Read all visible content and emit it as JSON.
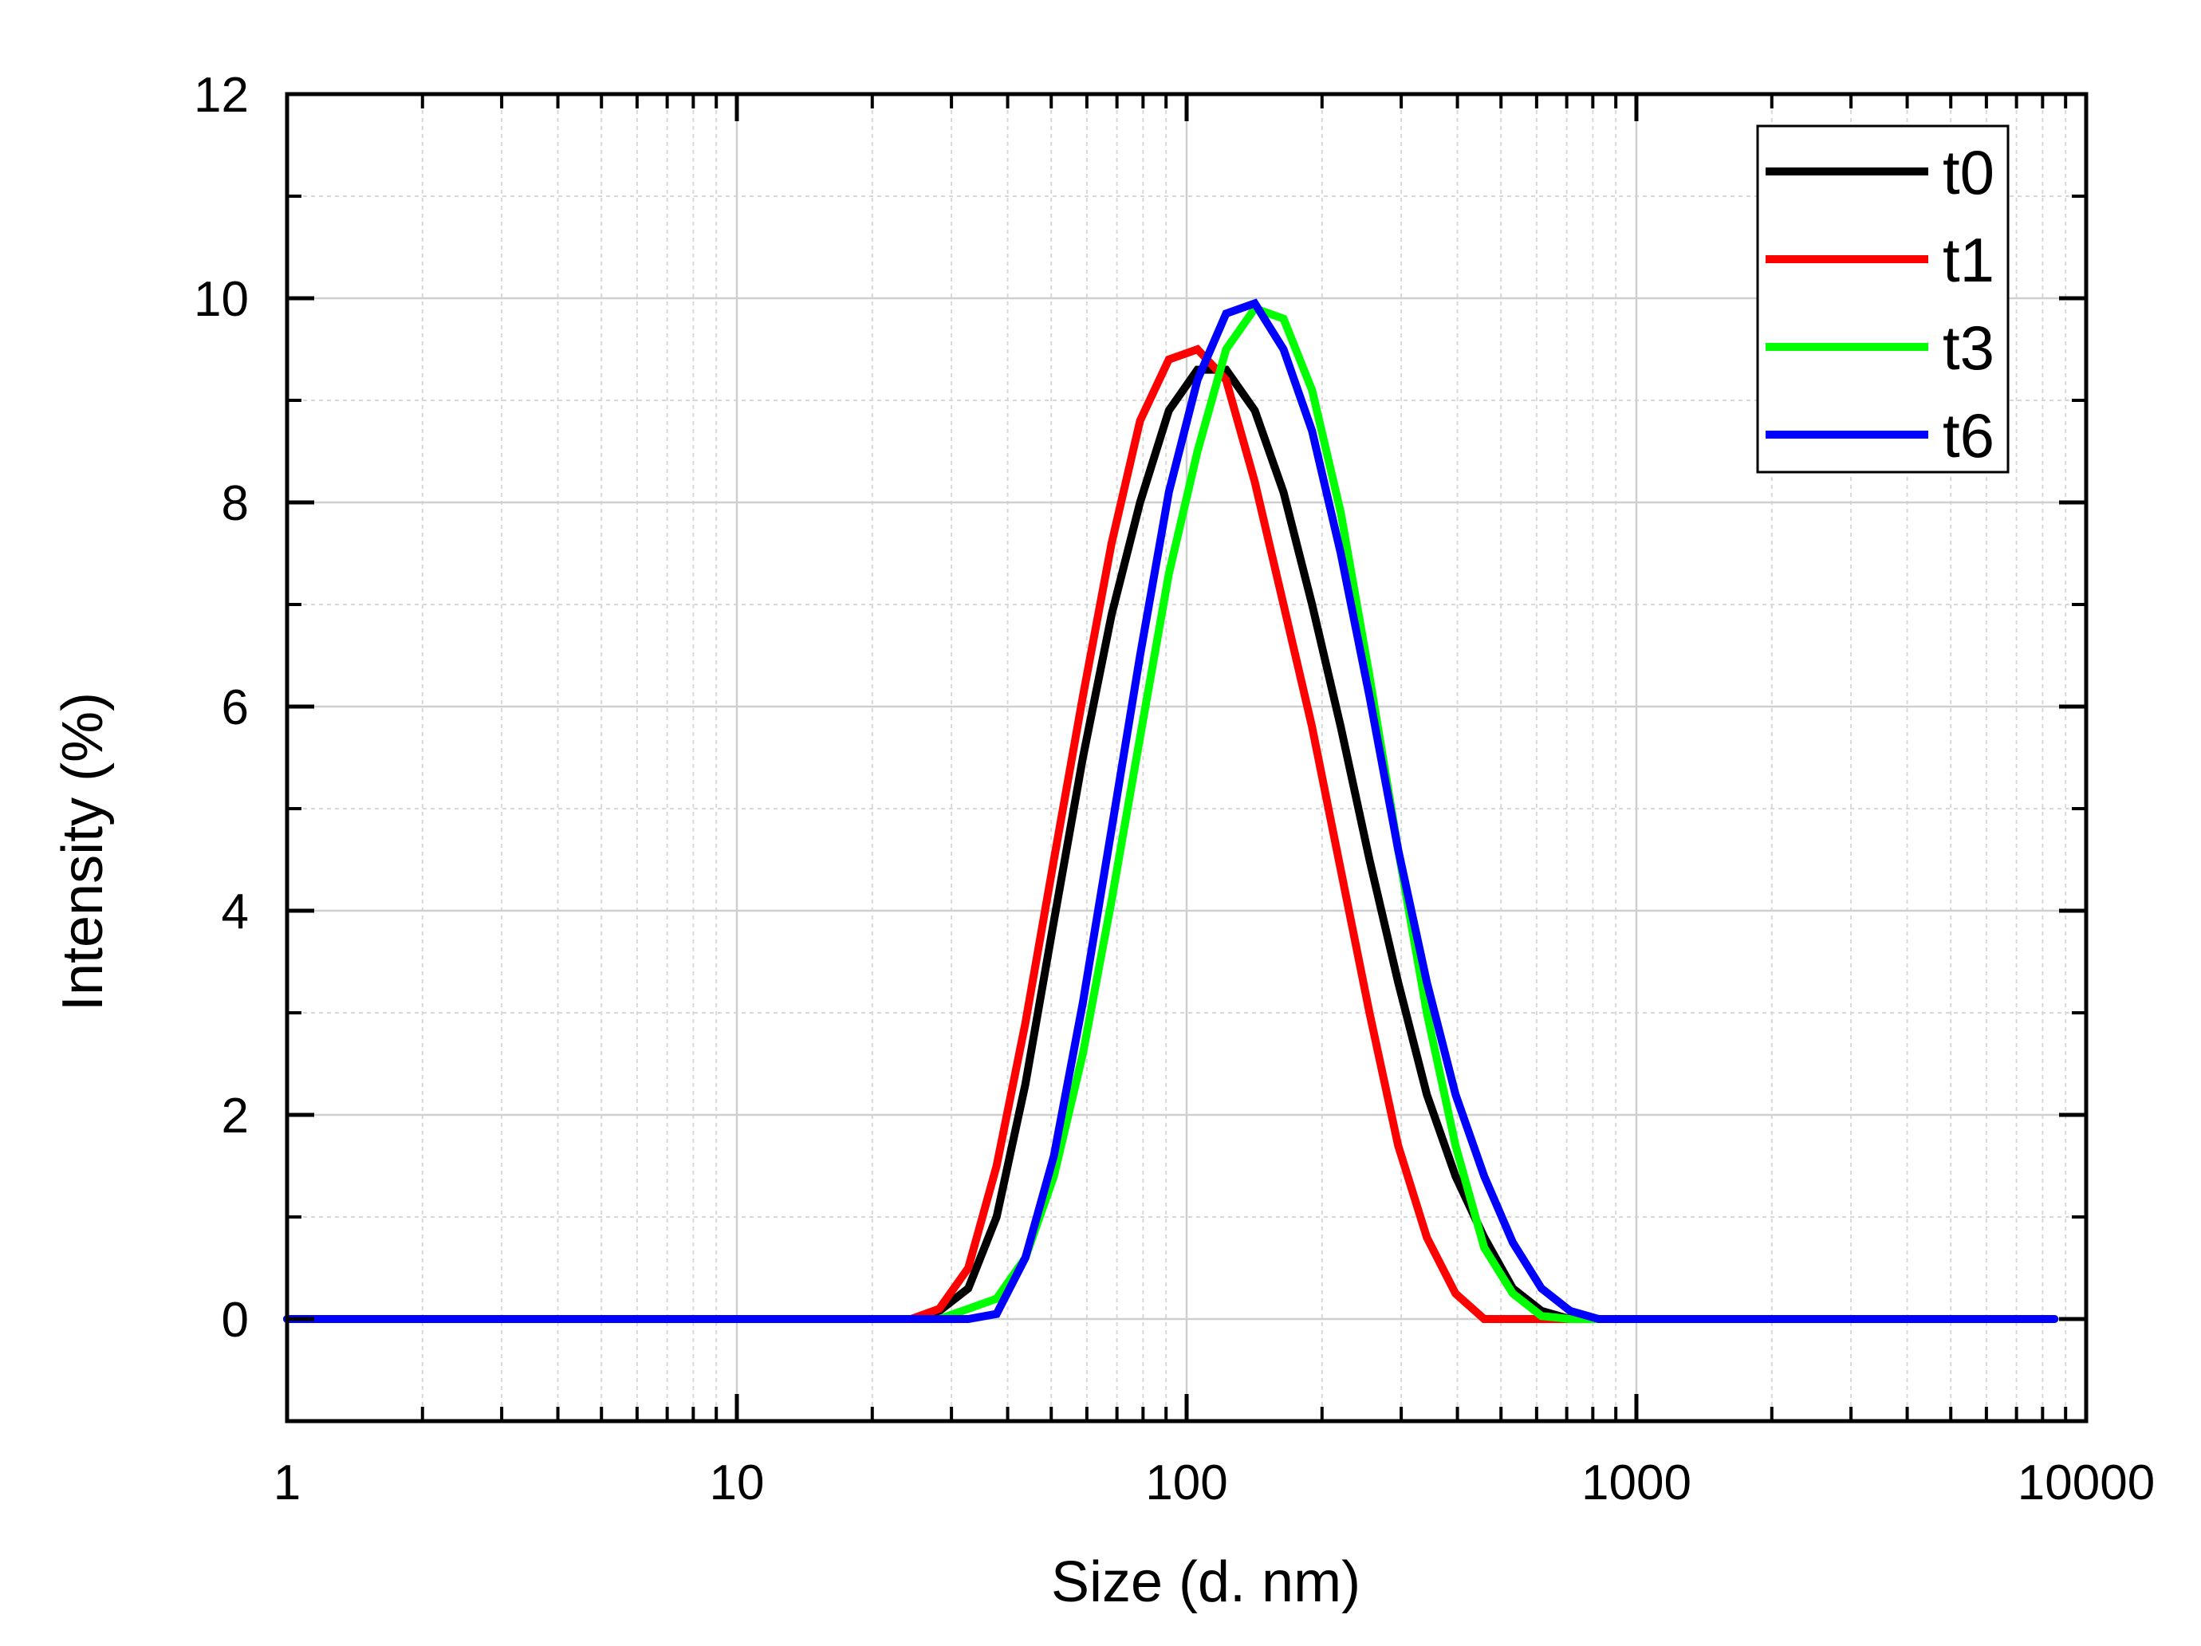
{
  "chart_data": {
    "type": "line",
    "title": "",
    "xlabel": "Size (d. nm)",
    "ylabel": "Intensity (%)",
    "xscale": "log",
    "xlim": [
      1,
      10000
    ],
    "ylim": [
      -1,
      12
    ],
    "xticks": [
      1,
      10,
      100,
      1000,
      10000
    ],
    "xtick_labels": [
      "1",
      "10",
      "100",
      "1000",
      "10000"
    ],
    "yticks": [
      0,
      2,
      4,
      6,
      8,
      10,
      12
    ],
    "ytick_labels": [
      "0",
      "2",
      "4",
      "6",
      "8",
      "10",
      "12"
    ],
    "grid": true,
    "legend_position": "top-right",
    "series": [
      {
        "name": "t0",
        "color": "#000000",
        "x": [
          1,
          24.4,
          28.2,
          32.7,
          37.8,
          43.8,
          50.7,
          58.8,
          68.1,
          78.8,
          91.3,
          105.7,
          122.4,
          141.8,
          164.2,
          190.1,
          220.2,
          255.0,
          295.3,
          342.0,
          396.1,
          458.7,
          531.2,
          615.1,
          712.4,
          825.0,
          8500
        ],
        "y": [
          0,
          0,
          0.08,
          0.3,
          1.0,
          2.3,
          3.9,
          5.5,
          6.9,
          8.0,
          8.9,
          9.3,
          9.3,
          8.9,
          8.1,
          7.0,
          5.8,
          4.5,
          3.3,
          2.2,
          1.4,
          0.8,
          0.3,
          0.08,
          0,
          0,
          0
        ]
      },
      {
        "name": "t1",
        "color": "#ff0000",
        "x": [
          1,
          24.4,
          28.2,
          32.7,
          37.8,
          43.8,
          50.7,
          58.8,
          68.1,
          78.8,
          91.3,
          105.7,
          122.4,
          141.8,
          164.2,
          190.1,
          220.2,
          255.0,
          295.3,
          342.0,
          396.1,
          458.7,
          531.2,
          615.1,
          8500
        ],
        "y": [
          0,
          0,
          0.1,
          0.5,
          1.5,
          2.9,
          4.5,
          6.1,
          7.6,
          8.8,
          9.4,
          9.5,
          9.2,
          8.2,
          7.0,
          5.8,
          4.4,
          3.0,
          1.7,
          0.8,
          0.25,
          0,
          0,
          0,
          0
        ]
      },
      {
        "name": "t3",
        "color": "#00ff00",
        "x": [
          1,
          24.4,
          28.2,
          32.7,
          37.8,
          43.8,
          50.7,
          58.8,
          68.1,
          78.8,
          91.3,
          105.7,
          122.4,
          141.8,
          164.2,
          190.1,
          220.2,
          255.0,
          295.3,
          342.0,
          396.1,
          458.7,
          531.2,
          615.1,
          712.4,
          825.0,
          8500
        ],
        "y": [
          0,
          0,
          0,
          0.1,
          0.2,
          0.6,
          1.4,
          2.6,
          4.1,
          5.7,
          7.3,
          8.5,
          9.5,
          9.9,
          9.8,
          9.1,
          7.9,
          6.3,
          4.6,
          3.0,
          1.7,
          0.7,
          0.25,
          0.03,
          0,
          0,
          0
        ]
      },
      {
        "name": "t6",
        "color": "#0000ff",
        "x": [
          1,
          24.4,
          28.2,
          32.7,
          37.8,
          43.8,
          50.7,
          58.8,
          68.1,
          78.8,
          91.3,
          105.7,
          122.4,
          141.8,
          164.2,
          190.1,
          220.2,
          255.0,
          295.3,
          342.0,
          396.1,
          458.7,
          531.2,
          615.1,
          712.4,
          825.0,
          8500
        ],
        "y": [
          0,
          0,
          0,
          0,
          0.05,
          0.6,
          1.6,
          3.1,
          4.8,
          6.5,
          8.1,
          9.2,
          9.85,
          9.95,
          9.5,
          8.7,
          7.5,
          6.1,
          4.6,
          3.3,
          2.2,
          1.4,
          0.75,
          0.3,
          0.08,
          0,
          0
        ]
      }
    ]
  }
}
